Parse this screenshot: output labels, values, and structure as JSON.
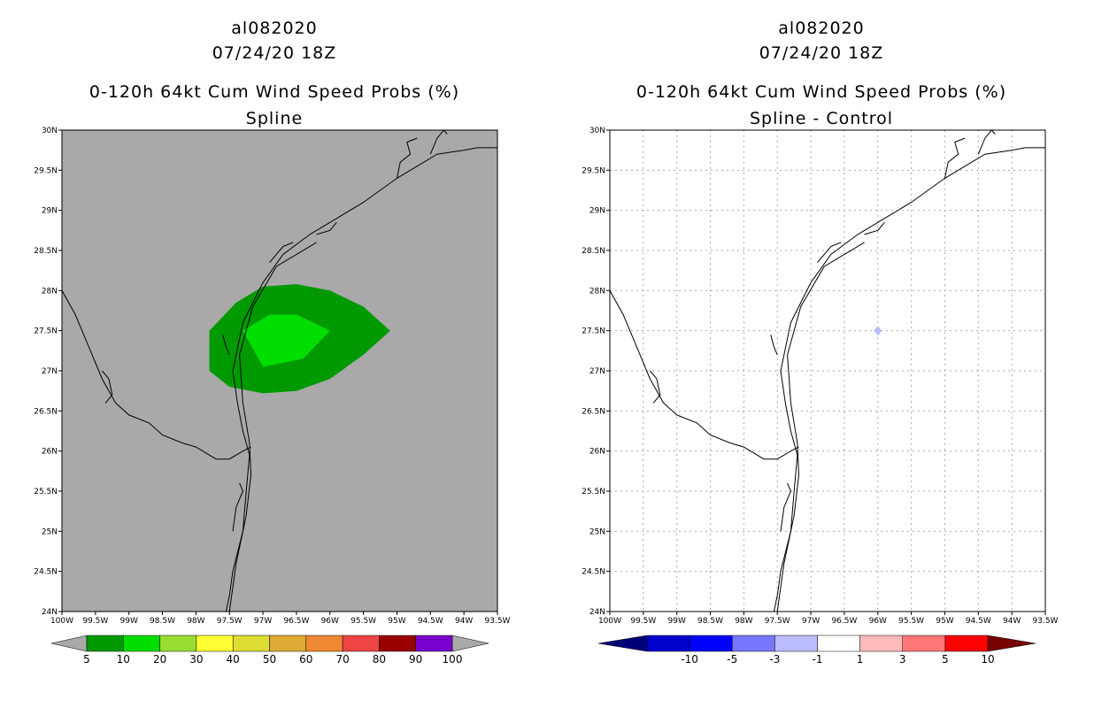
{
  "panels": [
    {
      "title_line1": "al082020",
      "title_line2": "07/24/20 18Z",
      "title_line3": "0-120h 64kt Cum Wind Speed Probs (%)",
      "title_line4": "Spline",
      "background": "#a9a9a9",
      "grid": false,
      "colorbar": {
        "labels": [
          "5",
          "10",
          "20",
          "30",
          "40",
          "50",
          "60",
          "70",
          "80",
          "90",
          "100"
        ],
        "colors": [
          "#009900",
          "#00dd00",
          "#99dd33",
          "#ffff33",
          "#dddd33",
          "#ddaa33",
          "#ee8833",
          "#ee4444",
          "#990000",
          "#7700cc"
        ],
        "under_color": "#a9a9a9",
        "over_color": "#a9a9a9"
      }
    },
    {
      "title_line1": "al082020",
      "title_line2": "07/24/20 18Z",
      "title_line3": "0-120h 64kt Cum Wind Speed Probs (%)",
      "title_line4": "Spline - Control",
      "background": "#ffffff",
      "grid": true,
      "colorbar": {
        "labels": [
          "-10",
          "-5",
          "-3",
          "-1",
          "1",
          "3",
          "5",
          "10"
        ],
        "colors": [
          "#0000cc",
          "#0000ff",
          "#7777ff",
          "#bbbbff",
          "#ffffff",
          "#ffbbbb",
          "#ff7777",
          "#ff0000"
        ],
        "under_color": "#000077",
        "over_color": "#770000"
      }
    }
  ],
  "chart_data": [
    {
      "type": "heatmap",
      "title": "0-120h 64kt Cum Wind Speed Probs (%) Spline",
      "x_tick_labels": [
        "100W",
        "99.5W",
        "99W",
        "98.5W",
        "98W",
        "97.5W",
        "97W",
        "96.5W",
        "96W",
        "95.5W",
        "95W",
        "94.5W",
        "94W",
        "93.5W"
      ],
      "y_tick_labels": [
        "24N",
        "24.5N",
        "25N",
        "25.5N",
        "26N",
        "26.5N",
        "27N",
        "27.5N",
        "28N",
        "28.5N",
        "29N",
        "29.5N",
        "30N"
      ],
      "xlim": [
        -100,
        -93.5
      ],
      "ylim": [
        24,
        30
      ],
      "contours": [
        {
          "level": "5-10",
          "color": "#009900",
          "lon": [
            -97.8,
            -97.4,
            -97.0,
            -96.5,
            -96.0,
            -95.5,
            -95.1,
            -95.5,
            -96.0,
            -96.5,
            -97.0,
            -97.5,
            -97.8,
            -97.8
          ],
          "lat": [
            27.5,
            27.85,
            28.05,
            28.08,
            28.0,
            27.8,
            27.5,
            27.2,
            26.9,
            26.75,
            26.72,
            26.8,
            27.0,
            27.5
          ]
        },
        {
          "level": "10-20",
          "color": "#00dd00",
          "lon": [
            -97.3,
            -96.9,
            -96.5,
            -96.0,
            -96.4,
            -97.0,
            -97.3
          ],
          "lat": [
            27.5,
            27.7,
            27.7,
            27.5,
            27.15,
            27.05,
            27.5
          ]
        }
      ]
    },
    {
      "type": "heatmap",
      "title": "0-120h 64kt Cum Wind Speed Probs (%) Spline - Control",
      "x_tick_labels": [
        "100W",
        "99.5W",
        "99W",
        "98.5W",
        "98W",
        "97.5W",
        "97W",
        "96.5W",
        "96W",
        "95.5W",
        "95W",
        "94.5W",
        "94W",
        "93.5W"
      ],
      "y_tick_labels": [
        "24N",
        "24.5N",
        "25N",
        "25.5N",
        "26N",
        "26.5N",
        "27N",
        "27.5N",
        "28N",
        "28.5N",
        "29N",
        "29.5N",
        "30N"
      ],
      "xlim": [
        -100,
        -93.5
      ],
      "ylim": [
        24,
        30
      ],
      "contours": [
        {
          "level": "-3 to -1",
          "color": "#bbbbff",
          "lon": [
            -96.0,
            -95.94,
            -96.0,
            -96.06,
            -96.0
          ],
          "lat": [
            27.56,
            27.5,
            27.44,
            27.5,
            27.56
          ]
        }
      ]
    }
  ],
  "coastline": {
    "texas_coast": {
      "lon": [
        -96.3,
        -96.7,
        -97.0,
        -97.3,
        -97.45,
        -97.38,
        -97.3,
        -97.2,
        -97.25,
        -97.3,
        -97.45,
        -97.5,
        -97.55
      ],
      "lat": [
        28.7,
        28.45,
        28.1,
        27.6,
        27.0,
        26.6,
        26.25,
        25.95,
        25.5,
        25.0,
        24.5,
        24.2,
        24.0
      ]
    },
    "barrier_island": {
      "lon": [
        -96.2,
        -96.8,
        -97.15,
        -97.35,
        -97.3,
        -97.2,
        -97.18,
        -97.25,
        -97.4,
        -97.5
      ],
      "lat": [
        28.6,
        28.3,
        27.8,
        27.2,
        26.6,
        26.1,
        25.7,
        25.2,
        24.6,
        24.0
      ]
    },
    "upper_coast": {
      "lon": [
        -96.3,
        -96.0,
        -95.5,
        -95.0,
        -94.7,
        -94.4,
        -94.0,
        -93.8,
        -93.5
      ],
      "lat": [
        28.7,
        28.85,
        29.1,
        29.4,
        29.55,
        29.7,
        29.75,
        29.78,
        29.78
      ]
    },
    "rio_grande": {
      "lon": [
        -100.0,
        -99.8,
        -99.6,
        -99.4,
        -99.2,
        -99.0,
        -98.7,
        -98.5,
        -98.2,
        -98.0,
        -97.7,
        -97.5,
        -97.3,
        -97.18
      ],
      "lat": [
        28.0,
        27.7,
        27.3,
        26.9,
        26.6,
        26.45,
        26.35,
        26.2,
        26.1,
        26.05,
        25.9,
        25.9,
        26.0,
        26.05
      ]
    },
    "inlets": [
      {
        "lon": [
          -99.4,
          -99.3,
          -99.25,
          -99.35
        ],
        "lat": [
          27.0,
          26.9,
          26.7,
          26.6
        ]
      },
      {
        "lon": [
          -97.6,
          -97.55,
          -97.5
        ],
        "lat": [
          27.45,
          27.3,
          27.2
        ]
      },
      {
        "lon": [
          -96.9,
          -96.7,
          -96.55
        ],
        "lat": [
          28.35,
          28.55,
          28.6
        ]
      },
      {
        "lon": [
          -96.2,
          -96.0,
          -95.9
        ],
        "lat": [
          28.7,
          28.75,
          28.85
        ]
      },
      {
        "lon": [
          -95.0,
          -94.95,
          -94.8,
          -94.85,
          -94.7
        ],
        "lat": [
          29.4,
          29.6,
          29.7,
          29.85,
          29.9
        ]
      },
      {
        "lon": [
          -94.5,
          -94.4,
          -94.3,
          -94.25
        ],
        "lat": [
          29.7,
          29.9,
          30.0,
          29.95
        ]
      },
      {
        "lon": [
          -97.45,
          -97.4,
          -97.3,
          -97.35
        ],
        "lat": [
          25.0,
          25.3,
          25.5,
          25.6
        ]
      }
    ]
  }
}
